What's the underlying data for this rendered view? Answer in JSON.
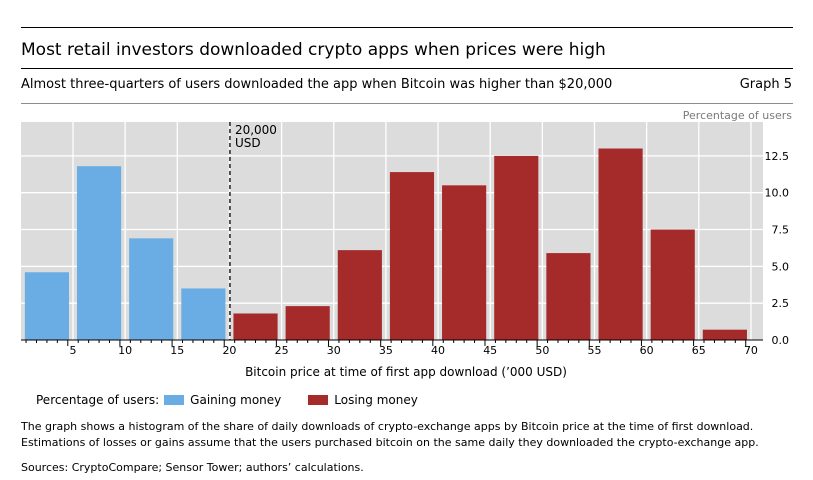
{
  "header": {
    "title": "Most retail investors downloaded crypto apps when prices were high",
    "subtitle": "Almost three-quarters of users downloaded the app when Bitcoin was higher than $20,000",
    "graph_number": "Graph 5"
  },
  "colors": {
    "gaining": "#6aade4",
    "losing": "#a52a2a",
    "plot_bg": "#dcdcdc",
    "grid": "#ffffff"
  },
  "chart_data": {
    "type": "bar",
    "title": "",
    "unit_label": "Percentage of users",
    "xlabel": "Bitcoin price at time of first app download (’000 USD)",
    "ylabel": "",
    "x_ticks": [
      5,
      10,
      15,
      20,
      25,
      30,
      35,
      40,
      45,
      50,
      55,
      60,
      65,
      70
    ],
    "x_range": [
      0,
      72
    ],
    "y_ticks": [
      "0.0",
      "2.5",
      "5.0",
      "7.5",
      "10.0",
      "12.5"
    ],
    "y_tick_values": [
      0,
      2.5,
      5,
      7.5,
      10,
      12.5
    ],
    "ylim": [
      0,
      14.8
    ],
    "grid": true,
    "bar_width_k": 5,
    "series": [
      {
        "name": "Gaining money",
        "color": "#6aade4",
        "bins": [
          [
            0,
            5,
            4.6
          ],
          [
            5,
            10,
            11.8
          ],
          [
            10,
            15,
            6.9
          ],
          [
            15,
            20,
            3.5
          ]
        ]
      },
      {
        "name": "Losing money",
        "color": "#a52a2a",
        "bins": [
          [
            20,
            25,
            1.8
          ],
          [
            25,
            30,
            2.3
          ],
          [
            30,
            35,
            6.1
          ],
          [
            35,
            40,
            11.4
          ],
          [
            40,
            45,
            10.5
          ],
          [
            45,
            50,
            12.5
          ],
          [
            50,
            55,
            5.9
          ],
          [
            55,
            60,
            13.0
          ],
          [
            60,
            65,
            7.5
          ],
          [
            65,
            70,
            0.7
          ]
        ]
      }
    ],
    "reference_line": {
      "x": 20,
      "label_line1": "20,000",
      "label_line2": "USD"
    }
  },
  "legend": {
    "prefix": "Percentage of users:",
    "gaining": "Gaining money",
    "losing": "Losing money"
  },
  "note": "The graph shows a histogram of the share of daily downloads of crypto-exchange apps by Bitcoin price at the time of first download. Estimations of losses or gains assume that the users purchased bitcoin on the same daily they downloaded the crypto-exchange app.",
  "sources": "Sources: CryptoCompare; Sensor Tower; authors’ calculations."
}
